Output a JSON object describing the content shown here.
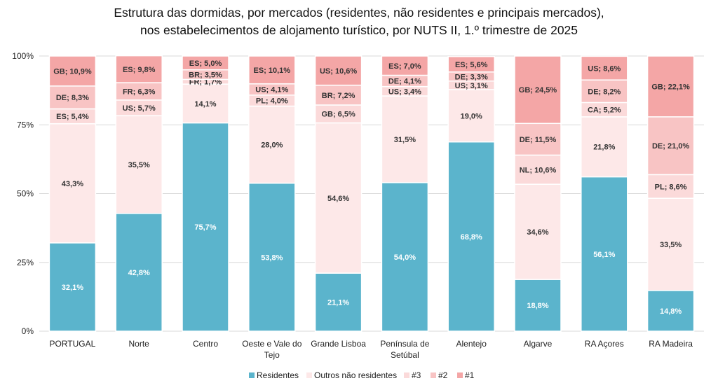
{
  "title_line1": "Estrutura das dormidas, por mercados (residentes, não residentes e principais mercados),",
  "title_line2": "nos estabelecimentos de alojamento turístico, por NUTS II, 1.º trimestre de 2025",
  "chart_data": {
    "type": "bar",
    "stacked": "100%",
    "yticks": [
      "0%",
      "25%",
      "50%",
      "75%",
      "100%"
    ],
    "ylim": [
      0,
      100
    ],
    "grid": true,
    "legend_position": "bottom",
    "colors": {
      "Residentes": "#5bb4cc",
      "Outros não residentes": "#fde8e8",
      "#3": "#fbdada",
      "#2": "#f8c4c4",
      "#1": "#f4a6a6"
    },
    "legend": [
      "Residentes",
      "Outros não residentes",
      "#3",
      "#2",
      "#1"
    ],
    "categories": [
      "PORTUGAL",
      "Norte",
      "Centro",
      "Oeste e Vale do Tejo",
      "Grande Lisboa",
      "Península de Setúbal",
      "Alentejo",
      "Algarve",
      "RA Açores",
      "RA Madeira"
    ],
    "category_lines": [
      [
        "PORTUGAL"
      ],
      [
        "Norte"
      ],
      [
        "Centro"
      ],
      [
        "Oeste e Vale do",
        "Tejo"
      ],
      [
        "Grande Lisboa"
      ],
      [
        "Península de",
        "Setúbal"
      ],
      [
        "Alentejo"
      ],
      [
        "Algarve"
      ],
      [
        "RA Açores"
      ],
      [
        "RA Madeira"
      ]
    ],
    "bars": [
      {
        "residentes": 32.1,
        "outros": 43.3,
        "m3": {
          "code": "ES",
          "value": 5.4
        },
        "m2": {
          "code": "DE",
          "value": 8.3
        },
        "m1": {
          "code": "GB",
          "value": 10.9
        }
      },
      {
        "residentes": 42.8,
        "outros": 35.5,
        "m3": {
          "code": "US",
          "value": 5.7
        },
        "m2": {
          "code": "FR",
          "value": 6.3
        },
        "m1": {
          "code": "ES",
          "value": 9.8
        }
      },
      {
        "residentes": 75.7,
        "outros": 14.1,
        "m3": {
          "code": "FR",
          "value": 1.7
        },
        "m2": {
          "code": "BR",
          "value": 3.5
        },
        "m1": {
          "code": "ES",
          "value": 5.0
        }
      },
      {
        "residentes": 53.8,
        "outros": 28.0,
        "m3": {
          "code": "PL",
          "value": 4.0
        },
        "m2": {
          "code": "US",
          "value": 4.1
        },
        "m1": {
          "code": "ES",
          "value": 10.1
        }
      },
      {
        "residentes": 21.1,
        "outros": 54.6,
        "m3": {
          "code": "GB",
          "value": 6.5
        },
        "m2": {
          "code": "BR",
          "value": 7.2
        },
        "m1": {
          "code": "US",
          "value": 10.6
        }
      },
      {
        "residentes": 54.0,
        "outros": 31.5,
        "m3": {
          "code": "US",
          "value": 3.4
        },
        "m2": {
          "code": "DE",
          "value": 4.1
        },
        "m1": {
          "code": "ES",
          "value": 7.0
        }
      },
      {
        "residentes": 68.8,
        "outros": 19.0,
        "m3": {
          "code": "US",
          "value": 3.1
        },
        "m2": {
          "code": "DE",
          "value": 3.3
        },
        "m1": {
          "code": "ES",
          "value": 5.6
        }
      },
      {
        "residentes": 18.8,
        "outros": 34.6,
        "m3": {
          "code": "NL",
          "value": 10.6
        },
        "m2": {
          "code": "DE",
          "value": 11.5
        },
        "m1": {
          "code": "GB",
          "value": 24.5
        }
      },
      {
        "residentes": 56.1,
        "outros": 21.8,
        "m3": {
          "code": "CA",
          "value": 5.2
        },
        "m2": {
          "code": "DE",
          "value": 8.2
        },
        "m1": {
          "code": "US",
          "value": 8.6
        }
      },
      {
        "residentes": 14.8,
        "outros": 33.5,
        "m3": {
          "code": "PL",
          "value": 8.6
        },
        "m2": {
          "code": "DE",
          "value": 21.0
        },
        "m1": {
          "code": "GB",
          "value": 22.1
        }
      }
    ]
  }
}
